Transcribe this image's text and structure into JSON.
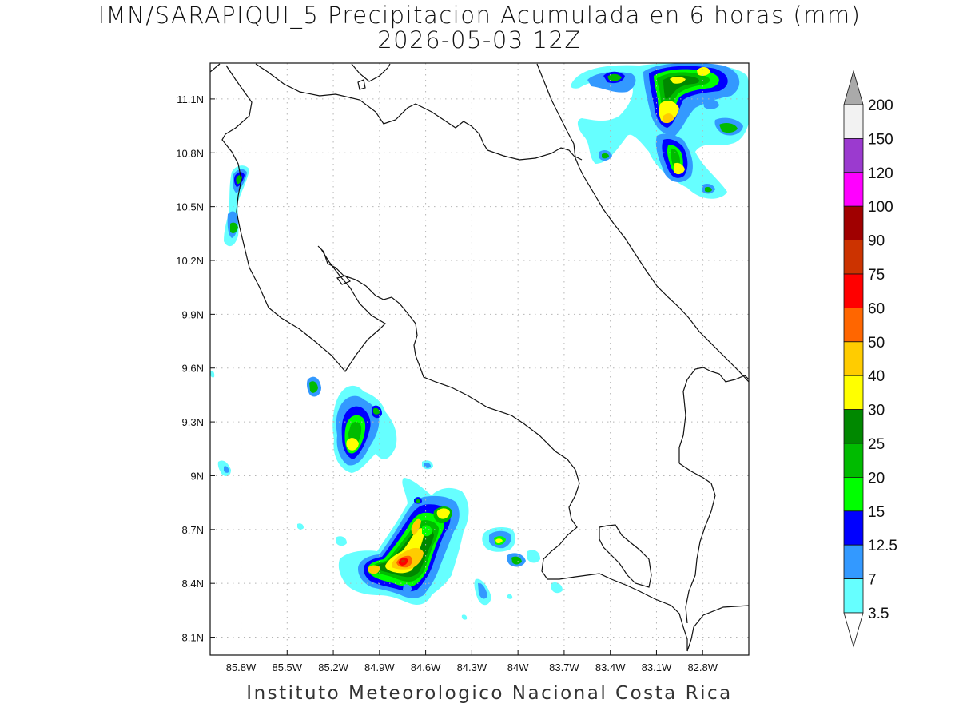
{
  "title_line1": "IMN/SARAPIQUI_5 Precipitacion Acumulada en 6 horas (mm)",
  "title_line2": "2026-05-03 12Z",
  "footer": "Instituto Meteorologico Nacional Costa Rica",
  "map": {
    "lon_ticks": [
      "85.8W",
      "85.5W",
      "85.2W",
      "84.9W",
      "84.6W",
      "84.3W",
      "84W",
      "83.7W",
      "83.4W",
      "83.1W",
      "82.8W"
    ],
    "lat_ticks": [
      "11.1N",
      "10.8N",
      "10.5N",
      "10.2N",
      "9.9N",
      "9.6N",
      "9.3N",
      "9N",
      "8.7N",
      "8.4N",
      "8.1N"
    ],
    "lon_range": [
      -86.0,
      -82.5
    ],
    "lat_range": [
      8.0,
      11.3
    ],
    "grid": "dotted"
  },
  "colorbar": {
    "levels": [
      "200",
      "150",
      "120",
      "100",
      "90",
      "75",
      "60",
      "50",
      "40",
      "30",
      "25",
      "20",
      "15",
      "12.5",
      "7",
      "3.5"
    ],
    "colors": [
      "#f2f2f2",
      "#9b3acf",
      "#ff00ff",
      "#a00000",
      "#cc3300",
      "#ff0000",
      "#ff6600",
      "#ffcc00",
      "#ffff00",
      "#008800",
      "#00bb00",
      "#00ff00",
      "#0000ff",
      "#3399ff",
      "#66ffff"
    ],
    "top_arrow_color": "#aaaaaa",
    "bottom_arrow_color": "#ffffff"
  },
  "precip_colors": {
    "c3_5": "#66ffff",
    "c7": "#3399ff",
    "c12_5": "#0000ff",
    "c15": "#00ff00",
    "c20": "#00bb00",
    "c25": "#008800",
    "c30": "#ffff00",
    "c40": "#ffcc00",
    "c50": "#ff6600",
    "c60": "#ff0000"
  }
}
